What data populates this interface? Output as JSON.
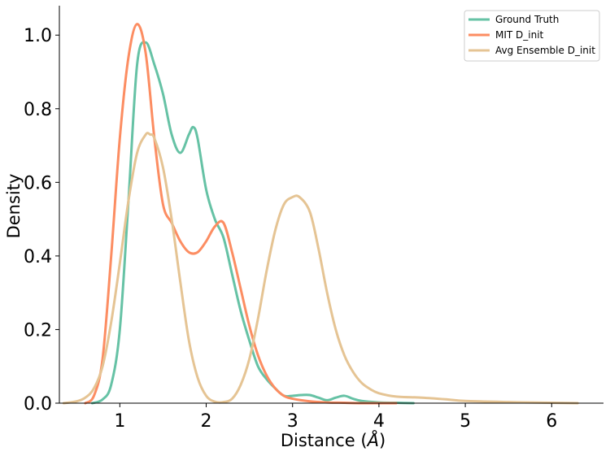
{
  "chart_data": {
    "type": "line",
    "xlabel": "Distance ($\\AA$)",
    "xlabel_text": "Distance (",
    "xlabel_unit": "Å",
    "xlabel_close": ")",
    "ylabel": "Density",
    "xlim": [
      0.3,
      6.6
    ],
    "ylim": [
      0.0,
      1.08
    ],
    "xticks": [
      1,
      2,
      3,
      4,
      5,
      6
    ],
    "xtick_labels": [
      "1",
      "2",
      "3",
      "4",
      "5",
      "6"
    ],
    "yticks": [
      0.0,
      0.2,
      0.4,
      0.6,
      0.8,
      1.0
    ],
    "ytick_labels": [
      "0.0",
      "0.2",
      "0.4",
      "0.6",
      "0.8",
      "1.0"
    ],
    "grid": false,
    "legend_position": "top-right",
    "series": [
      {
        "name": "Ground Truth",
        "color": "#66c2a5",
        "x": [
          0.68,
          0.8,
          0.9,
          1.0,
          1.1,
          1.2,
          1.3,
          1.4,
          1.5,
          1.6,
          1.7,
          1.8,
          1.85,
          1.9,
          2.0,
          2.1,
          2.2,
          2.3,
          2.4,
          2.5,
          2.6,
          2.7,
          2.8,
          2.9,
          3.0,
          3.1,
          3.2,
          3.3,
          3.4,
          3.5,
          3.6,
          3.7,
          3.8,
          4.0,
          4.2,
          4.4
        ],
        "y": [
          0.0,
          0.01,
          0.05,
          0.2,
          0.55,
          0.92,
          0.98,
          0.92,
          0.84,
          0.73,
          0.68,
          0.73,
          0.75,
          0.72,
          0.58,
          0.5,
          0.45,
          0.35,
          0.25,
          0.17,
          0.1,
          0.065,
          0.04,
          0.02,
          0.02,
          0.022,
          0.022,
          0.015,
          0.008,
          0.015,
          0.02,
          0.012,
          0.006,
          0.002,
          0.001,
          0.0
        ]
      },
      {
        "name": "MIT D_init",
        "color": "#fc8d62",
        "x": [
          0.6,
          0.7,
          0.8,
          0.9,
          1.0,
          1.1,
          1.2,
          1.3,
          1.4,
          1.5,
          1.6,
          1.7,
          1.8,
          1.9,
          2.0,
          2.1,
          2.2,
          2.3,
          2.4,
          2.5,
          2.6,
          2.7,
          2.8,
          2.9,
          3.0,
          3.2,
          3.4,
          3.6,
          3.8,
          4.0,
          4.2
        ],
        "y": [
          0.0,
          0.02,
          0.12,
          0.4,
          0.72,
          0.94,
          1.03,
          0.95,
          0.72,
          0.54,
          0.49,
          0.44,
          0.41,
          0.41,
          0.44,
          0.48,
          0.49,
          0.41,
          0.31,
          0.21,
          0.13,
          0.075,
          0.04,
          0.02,
          0.012,
          0.005,
          0.002,
          0.001,
          0.0,
          0.0,
          0.0
        ]
      },
      {
        "name": "Avg Ensemble D_init",
        "color": "#e5c494",
        "x": [
          0.35,
          0.5,
          0.6,
          0.7,
          0.8,
          0.9,
          1.0,
          1.1,
          1.2,
          1.3,
          1.35,
          1.4,
          1.5,
          1.6,
          1.7,
          1.8,
          1.9,
          2.0,
          2.1,
          2.2,
          2.3,
          2.4,
          2.5,
          2.6,
          2.7,
          2.8,
          2.9,
          3.0,
          3.08,
          3.2,
          3.3,
          3.4,
          3.5,
          3.6,
          3.7,
          3.8,
          3.9,
          4.0,
          4.2,
          4.5,
          4.8,
          5.0,
          5.5,
          6.0,
          6.3
        ],
        "y": [
          0.0,
          0.005,
          0.015,
          0.04,
          0.1,
          0.22,
          0.38,
          0.55,
          0.68,
          0.73,
          0.73,
          0.72,
          0.64,
          0.5,
          0.33,
          0.17,
          0.07,
          0.02,
          0.004,
          0.003,
          0.012,
          0.05,
          0.12,
          0.23,
          0.36,
          0.47,
          0.54,
          0.56,
          0.56,
          0.52,
          0.42,
          0.3,
          0.2,
          0.13,
          0.085,
          0.055,
          0.038,
          0.027,
          0.018,
          0.015,
          0.01,
          0.006,
          0.003,
          0.001,
          0.0
        ]
      }
    ]
  }
}
